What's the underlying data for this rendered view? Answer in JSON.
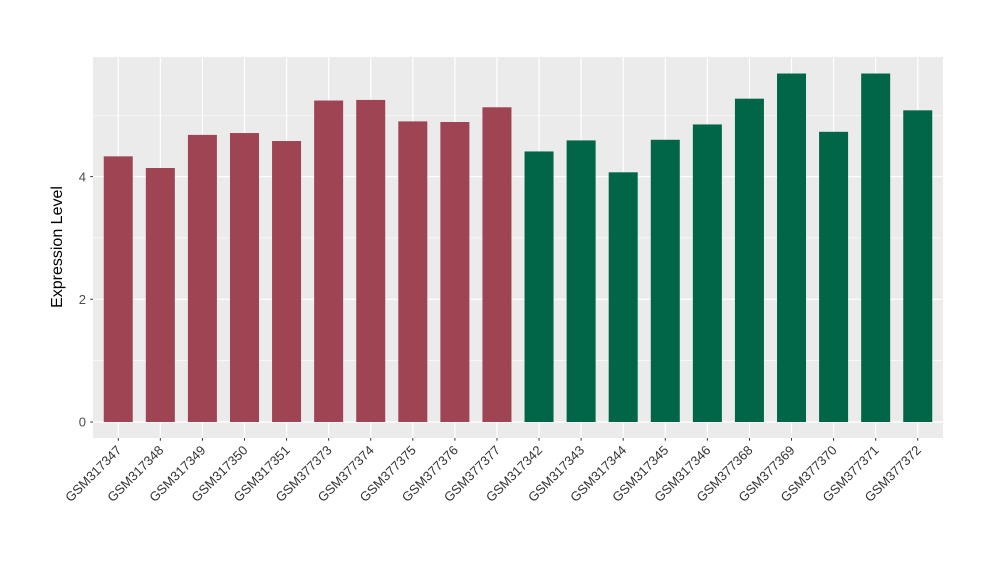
{
  "chart_data": {
    "type": "bar",
    "title": "",
    "xlabel": "",
    "ylabel": "Expression Level",
    "categories": [
      "GSM317347",
      "GSM317348",
      "GSM317349",
      "GSM317350",
      "GSM317351",
      "GSM377373",
      "GSM377374",
      "GSM377375",
      "GSM377376",
      "GSM377377",
      "GSM317342",
      "GSM317343",
      "GSM317344",
      "GSM317345",
      "GSM317346",
      "GSM377368",
      "GSM377369",
      "GSM377370",
      "GSM377371",
      "GSM377372"
    ],
    "values": [
      4.33,
      4.14,
      4.68,
      4.71,
      4.58,
      5.24,
      5.25,
      4.9,
      4.89,
      5.13,
      4.41,
      4.59,
      4.07,
      4.6,
      4.85,
      5.27,
      5.68,
      4.73,
      5.68,
      5.08
    ],
    "bar_colors": [
      "#9E4452",
      "#9E4452",
      "#9E4452",
      "#9E4452",
      "#9E4452",
      "#9E4452",
      "#9E4452",
      "#9E4452",
      "#9E4452",
      "#9E4452",
      "#006647",
      "#006647",
      "#006647",
      "#006647",
      "#006647",
      "#006647",
      "#006647",
      "#006647",
      "#006647",
      "#006647"
    ],
    "yticks": [
      0,
      2,
      4
    ],
    "minor_yticks": [
      1,
      3,
      5
    ],
    "ylim": [
      -0.26,
      5.96
    ],
    "grid": true,
    "legend_position": "none",
    "panel_bg": "#EBEBEB",
    "grid_color": "#FFFFFF",
    "axis_tick_text_color": "#4D4D4D",
    "x_tick_text_color": "#333333",
    "axis_title_color": "#000000",
    "tick_mark_color": "#333333"
  }
}
